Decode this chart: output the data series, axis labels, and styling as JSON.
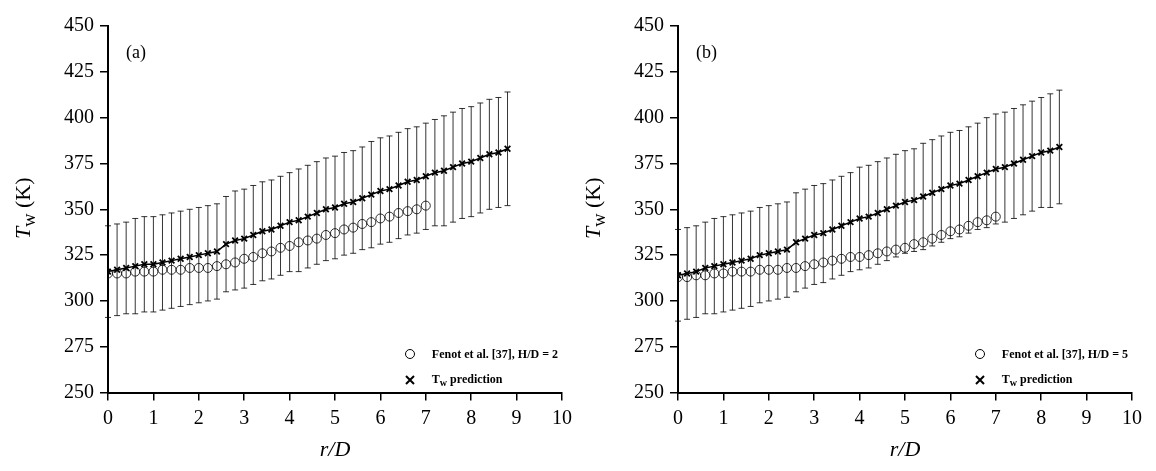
{
  "chart_data": [
    {
      "type": "scatter",
      "ylabel": "T$_{w}$ (K)",
      "xlabel": "r/D",
      "annotations": [
        "(a)"
      ],
      "xlim": [
        0,
        10
      ],
      "xticks": [
        0,
        1,
        2,
        3,
        4,
        5,
        6,
        7,
        8,
        9,
        10
      ],
      "ylim": [
        250,
        450
      ],
      "yticks": [
        250,
        275,
        300,
        325,
        350,
        375,
        400,
        425,
        450
      ],
      "grid": false,
      "legend": "bottom right",
      "series": [
        {
          "name": "Fenot et al. [37], H/D = 2",
          "type": "scatter",
          "marker": "circle",
          "color": "#000000",
          "x": [
            0,
            0.2,
            0.4,
            0.6,
            0.8,
            1,
            1.2,
            1.4,
            1.6,
            1.8,
            2,
            2.2,
            2.4,
            2.6,
            2.8,
            3,
            3.2,
            3.4,
            3.6,
            3.8,
            4,
            4.2,
            4.4,
            4.6,
            4.8,
            5,
            5.2,
            5.4,
            5.6,
            5.8,
            6,
            6.2,
            6.4,
            6.6,
            6.8,
            7
          ],
          "values": [
            315,
            315,
            315,
            316,
            316,
            316,
            317,
            317,
            317,
            318,
            318,
            318,
            319,
            320,
            321,
            323,
            324,
            326,
            327,
            329,
            330,
            332,
            333,
            334,
            336,
            337,
            339,
            340,
            342,
            343,
            345,
            346,
            348,
            349,
            350,
            352
          ]
        },
        {
          "name": "T$_{w}$ prediction",
          "type": "line",
          "marker": "cross",
          "line_style": "solid",
          "color": "#000000",
          "x": [
            0,
            0.2,
            0.4,
            0.6,
            0.8,
            1,
            1.2,
            1.4,
            1.6,
            1.8,
            2,
            2.2,
            2.4,
            2.6,
            2.8,
            3,
            3.2,
            3.4,
            3.6,
            3.8,
            4,
            4.2,
            4.4,
            4.6,
            4.8,
            5,
            5.2,
            5.4,
            5.6,
            5.8,
            6,
            6.2,
            6.4,
            6.6,
            6.8,
            7,
            7.2,
            7.4,
            7.6,
            7.8,
            8,
            8.2,
            8.4,
            8.6,
            8.8
          ],
          "values": [
            316,
            317,
            318,
            319,
            320,
            320,
            321,
            322,
            323,
            324,
            325,
            326,
            327,
            331,
            333,
            334,
            336,
            338,
            339,
            341,
            343,
            344,
            346,
            348,
            350,
            351,
            353,
            354,
            356,
            358,
            360,
            361,
            363,
            365,
            366,
            368,
            370,
            371,
            373,
            375,
            376,
            378,
            380,
            381,
            383
          ],
          "errors": [
            25,
            25,
            25,
            26,
            26,
            26,
            26,
            26,
            26,
            26,
            26,
            26,
            26,
            26,
            27,
            27,
            27,
            27,
            27,
            27,
            27,
            28,
            28,
            28,
            28,
            28,
            28,
            28,
            28,
            29,
            29,
            29,
            29,
            29,
            29,
            29,
            29,
            30,
            30,
            30,
            30,
            30,
            30,
            30,
            31
          ]
        }
      ]
    },
    {
      "type": "scatter",
      "ylabel": "T$_{w}$ (K)",
      "xlabel": "r/D",
      "annotations": [
        "(b)"
      ],
      "xlim": [
        0,
        10
      ],
      "xticks": [
        0,
        1,
        2,
        3,
        4,
        5,
        6,
        7,
        8,
        9,
        10
      ],
      "ylim": [
        250,
        450
      ],
      "yticks": [
        250,
        275,
        300,
        325,
        350,
        375,
        400,
        425,
        450
      ],
      "grid": false,
      "legend": "bottom right",
      "series": [
        {
          "name": "Fenot et al. [37], H/D = 5",
          "type": "scatter",
          "marker": "circle",
          "color": "#000000",
          "x": [
            0,
            0.2,
            0.4,
            0.6,
            0.8,
            1,
            1.2,
            1.4,
            1.6,
            1.8,
            2,
            2.2,
            2.4,
            2.6,
            2.8,
            3,
            3.2,
            3.4,
            3.6,
            3.8,
            4,
            4.2,
            4.4,
            4.6,
            4.8,
            5,
            5.2,
            5.4,
            5.6,
            5.8,
            6,
            6.2,
            6.4,
            6.6,
            6.8,
            7
          ],
          "values": [
            313,
            313,
            314,
            314,
            315,
            315,
            316,
            316,
            316,
            317,
            317,
            317,
            318,
            318,
            319,
            320,
            321,
            322,
            323,
            324,
            324,
            325,
            326,
            327,
            328,
            329,
            331,
            332,
            334,
            336,
            338,
            339,
            341,
            343,
            344,
            346
          ]
        },
        {
          "name": "T$_{w}$ prediction",
          "type": "line",
          "marker": "cross",
          "line_style": "solid",
          "color": "#000000",
          "x": [
            0,
            0.2,
            0.4,
            0.6,
            0.8,
            1,
            1.2,
            1.4,
            1.6,
            1.8,
            2,
            2.2,
            2.4,
            2.6,
            2.8,
            3,
            3.2,
            3.4,
            3.6,
            3.8,
            4,
            4.2,
            4.4,
            4.6,
            4.8,
            5,
            5.2,
            5.4,
            5.6,
            5.8,
            6,
            6.2,
            6.4,
            6.6,
            6.8,
            7,
            7.2,
            7.4,
            7.6,
            7.8,
            8,
            8.2,
            8.4
          ],
          "values": [
            314,
            315,
            316,
            318,
            319,
            320,
            321,
            322,
            323,
            325,
            326,
            327,
            328,
            332,
            334,
            336,
            337,
            339,
            341,
            343,
            345,
            346,
            348,
            350,
            352,
            354,
            355,
            357,
            359,
            361,
            363,
            364,
            366,
            368,
            370,
            372,
            373,
            375,
            377,
            379,
            381,
            382,
            384
          ],
          "errors": [
            25,
            25,
            25,
            25,
            26,
            26,
            26,
            26,
            26,
            26,
            26,
            26,
            26,
            27,
            27,
            27,
            27,
            27,
            27,
            27,
            28,
            28,
            28,
            28,
            28,
            28,
            28,
            29,
            29,
            29,
            29,
            29,
            29,
            29,
            30,
            30,
            30,
            30,
            30,
            30,
            30,
            31,
            31
          ]
        }
      ]
    }
  ]
}
